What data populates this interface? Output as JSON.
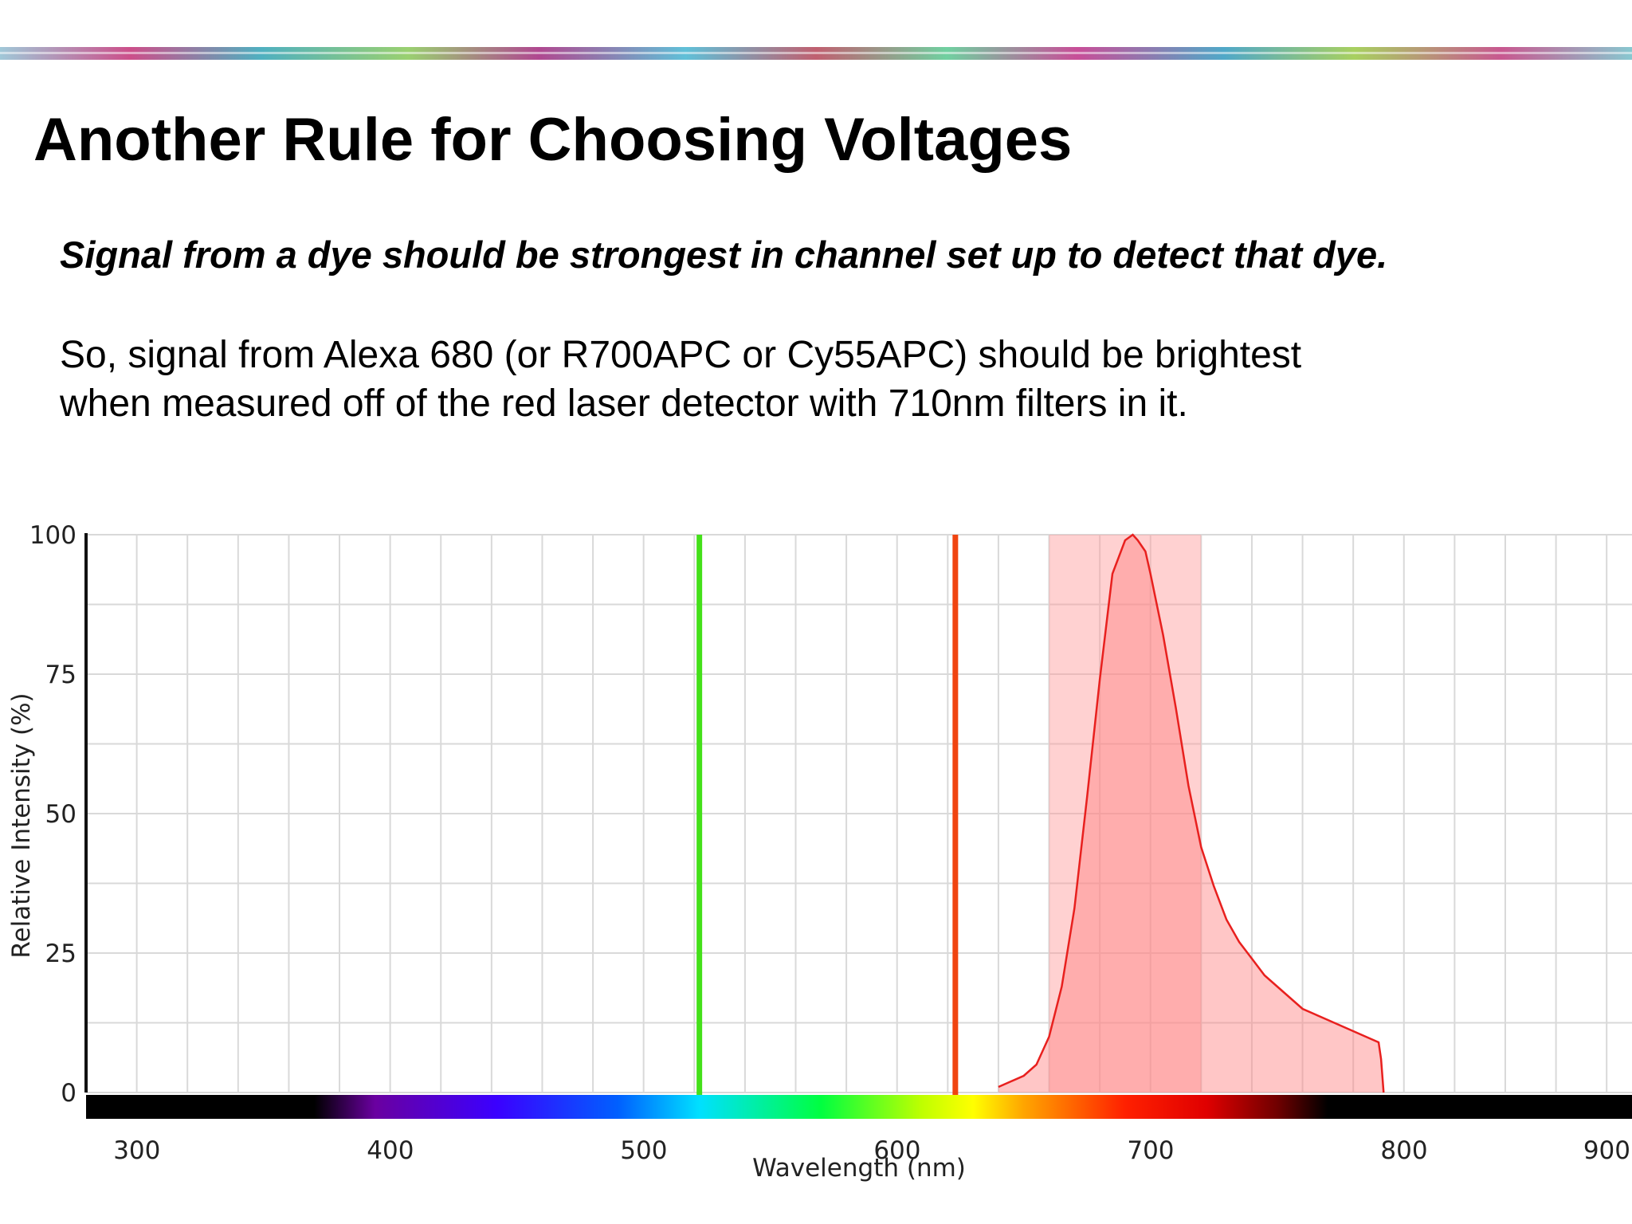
{
  "slide": {
    "title": "Another Rule for Choosing Voltages",
    "subtitle": "Signal from a dye should be strongest in channel set up to detect that dye.",
    "body_lines": [
      "So, signal from Alexa 680 (or R700APC or Cy55APC) should be brightest",
      "when measured off of the red laser detector with 710nm filters in it."
    ]
  },
  "colors": {
    "green_laser": "#44e01a",
    "red_laser": "#f04410",
    "filter_band": "#ff9999",
    "emission_fill": "#ff8080",
    "emission_line": "#e8201e",
    "grid": "#d9d9d9"
  },
  "chart_data": {
    "type": "area",
    "title": "",
    "xlabel": "Wavelength (nm)",
    "ylabel": "Relative Intensity (%)",
    "xlim": [
      290,
      900
    ],
    "ylim": [
      0,
      100
    ],
    "x_ticks": [
      300,
      400,
      500,
      600,
      700,
      800,
      900
    ],
    "y_ticks": [
      0,
      25,
      50,
      75,
      100
    ],
    "grid": true,
    "laser_lines": [
      {
        "x": 532,
        "color": "#44e01a"
      },
      {
        "x": 633,
        "color": "#f04410"
      }
    ],
    "filter_band": {
      "x_start": 670,
      "x_end": 730
    },
    "series": [
      {
        "x": [
          650,
          655,
          660,
          665,
          670,
          675,
          680,
          685,
          690,
          695,
          700,
          703,
          705,
          708,
          710,
          715,
          720,
          725,
          730,
          735,
          740,
          745,
          750,
          755,
          760,
          765,
          770,
          775,
          780,
          785,
          790,
          795,
          800,
          801,
          802
        ],
        "values": [
          1,
          2,
          3,
          5,
          10,
          19,
          33,
          53,
          74,
          93,
          99,
          100,
          99,
          97,
          93,
          82,
          69,
          55,
          44,
          37,
          31,
          27,
          24,
          21,
          19,
          17,
          15,
          14,
          13,
          12,
          11,
          10,
          9,
          6,
          0
        ]
      }
    ]
  }
}
